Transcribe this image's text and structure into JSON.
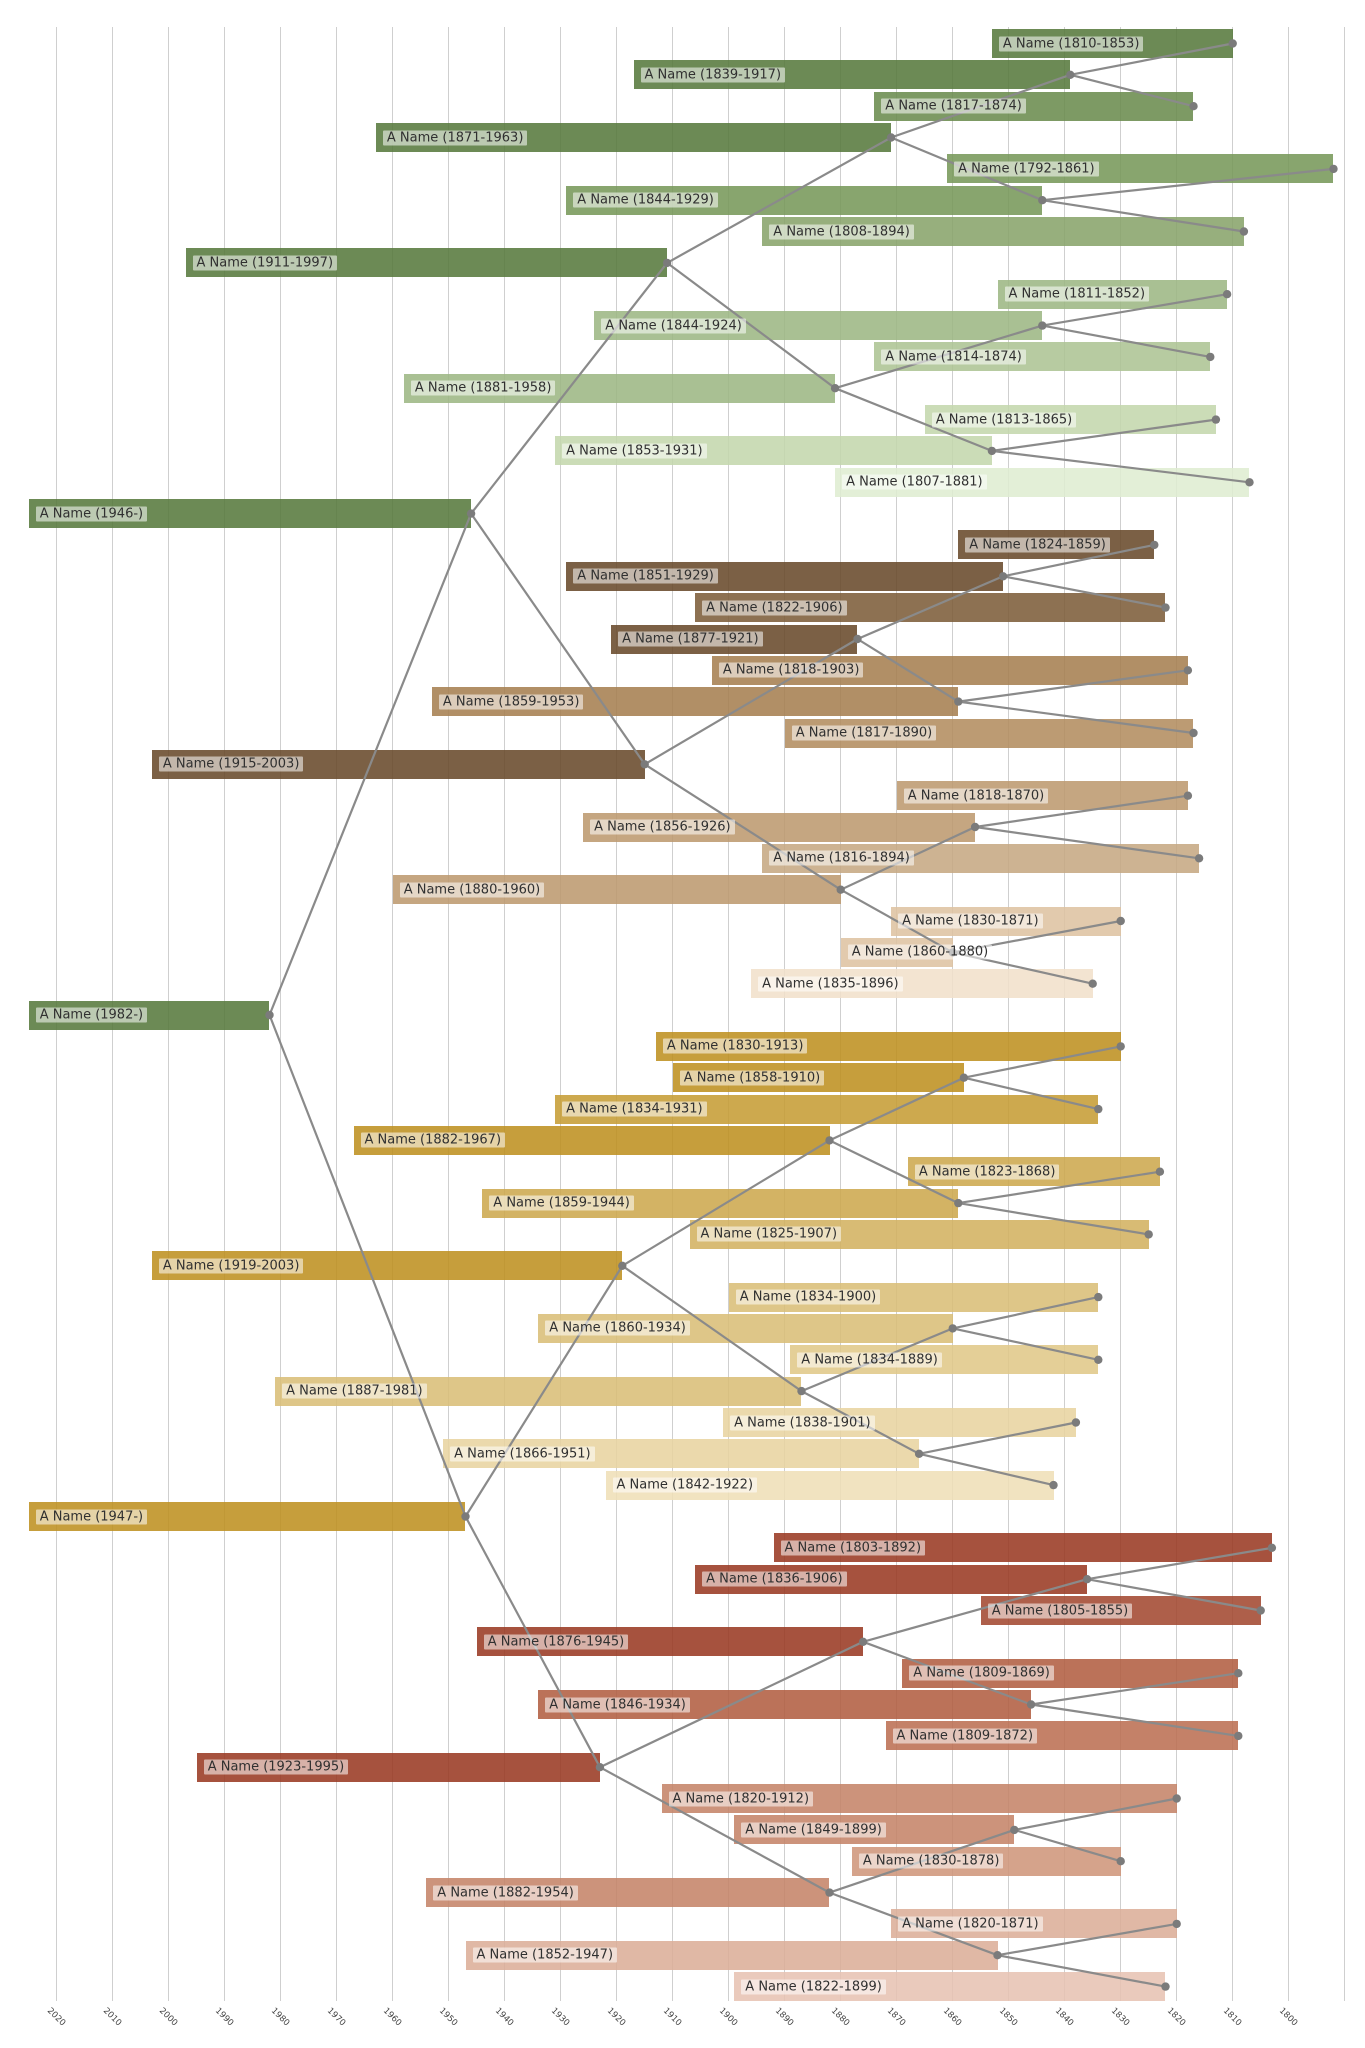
{
  "chart_data": {
    "type": "timeline_tree",
    "title": "",
    "description": "Six-generation ancestor lifespan timeline. Horizontal bars are lifespans on a reversed year axis (recent at left, old at right). Gray lines link each person's birth point to the birth points of their two parents. Bar hue encodes grandparent branch (green / brown / gold / rust); lighter shades encode more-maternal lines.",
    "axis": {
      "unit": "year",
      "direction": "reversed",
      "gridline_step": 10,
      "gridline_years": [
        2020,
        2010,
        2000,
        1990,
        1980,
        1970,
        1960,
        1950,
        1940,
        1930,
        1920,
        1910,
        1900,
        1890,
        1880,
        1870,
        1860,
        1850,
        1840,
        1830,
        1820,
        1810,
        1800,
        1790
      ],
      "tick_labels": [
        "2020",
        "2010",
        "2000",
        "1990",
        "1980",
        "1970",
        "1960",
        "1950",
        "1940",
        "1930",
        "1920",
        "1910",
        "1900",
        "1890",
        "1880",
        "1870",
        "1860",
        "1850",
        "1840",
        "1830",
        "1820",
        "1810",
        "1800"
      ]
    },
    "living_bar_end_year": 2025,
    "colors": {
      "gridline": "#cfcfcf",
      "link_line": "#8a8a8a",
      "birth_dot": "#7b7b7b",
      "label_text": "#303030",
      "label_bg": "rgba(255,255,255,0.55)",
      "palette": {
        "green": [
          "#6c8a54",
          "#7d9a64",
          "#88a46e",
          "#97af7d",
          "#a9c093",
          "#b7cba1",
          "#cbdcb7",
          "#e3efd7"
        ],
        "brown": [
          "#7b6044",
          "#8d7052",
          "#b18e66",
          "#bc9b73",
          "#c5a680",
          "#cdb292",
          "#e2caad",
          "#f3e4d1"
        ],
        "gold": [
          "#c69e3c",
          "#cda94e",
          "#d3b264",
          "#d8bb74",
          "#dec687",
          "#e4cf97",
          "#ebd9ab",
          "#f1e3c0"
        ],
        "rust": [
          "#a6523d",
          "#ae5f4a",
          "#bb7259",
          "#c48068",
          "#cc937b",
          "#d5a38b",
          "#e0b8a4",
          "#eacabc"
        ]
      }
    },
    "persons": [
      {
        "row": 1,
        "label": "A Name (1810-1853)",
        "birth": 1810,
        "death": 1853,
        "branch": "green",
        "shade": 0,
        "parents": null
      },
      {
        "row": 2,
        "label": "A Name (1839-1917)",
        "birth": 1839,
        "death": 1917,
        "branch": "green",
        "shade": 0,
        "parents": [
          1,
          3
        ]
      },
      {
        "row": 3,
        "label": "A Name (1817-1874)",
        "birth": 1817,
        "death": 1874,
        "branch": "green",
        "shade": 1,
        "parents": null
      },
      {
        "row": 4,
        "label": "A Name (1871-1963)",
        "birth": 1871,
        "death": 1963,
        "branch": "green",
        "shade": 0,
        "parents": [
          2,
          6
        ]
      },
      {
        "row": 5,
        "label": "A Name (1792-1861)",
        "birth": 1792,
        "death": 1861,
        "branch": "green",
        "shade": 2,
        "parents": null
      },
      {
        "row": 6,
        "label": "A Name (1844-1929)",
        "birth": 1844,
        "death": 1929,
        "branch": "green",
        "shade": 2,
        "parents": [
          5,
          7
        ]
      },
      {
        "row": 7,
        "label": "A Name (1808-1894)",
        "birth": 1808,
        "death": 1894,
        "branch": "green",
        "shade": 3,
        "parents": null
      },
      {
        "row": 8,
        "label": "A Name (1911-1997)",
        "birth": 1911,
        "death": 1997,
        "branch": "green",
        "shade": 0,
        "parents": [
          4,
          12
        ]
      },
      {
        "row": 9,
        "label": "A Name (1811-1852)",
        "birth": 1811,
        "death": 1852,
        "branch": "green",
        "shade": 4,
        "parents": null
      },
      {
        "row": 10,
        "label": "A Name (1844-1924)",
        "birth": 1844,
        "death": 1924,
        "branch": "green",
        "shade": 4,
        "parents": [
          9,
          11
        ]
      },
      {
        "row": 11,
        "label": "A Name (1814-1874)",
        "birth": 1814,
        "death": 1874,
        "branch": "green",
        "shade": 5,
        "parents": null
      },
      {
        "row": 12,
        "label": "A Name (1881-1958)",
        "birth": 1881,
        "death": 1958,
        "branch": "green",
        "shade": 4,
        "parents": [
          10,
          14
        ]
      },
      {
        "row": 13,
        "label": "A Name (1813-1865)",
        "birth": 1813,
        "death": 1865,
        "branch": "green",
        "shade": 6,
        "parents": null
      },
      {
        "row": 14,
        "label": "A Name (1853-1931)",
        "birth": 1853,
        "death": 1931,
        "branch": "green",
        "shade": 6,
        "parents": [
          13,
          15
        ]
      },
      {
        "row": 15,
        "label": "A Name (1807-1881)",
        "birth": 1807,
        "death": 1881,
        "branch": "green",
        "shade": 7,
        "parents": null
      },
      {
        "row": 16,
        "label": "A Name (1946-)",
        "birth": 1946,
        "death": null,
        "branch": "green",
        "shade": 0,
        "parents": [
          8,
          24
        ]
      },
      {
        "row": 17,
        "label": "A Name (1824-1859)",
        "birth": 1824,
        "death": 1859,
        "branch": "brown",
        "shade": 0,
        "parents": null
      },
      {
        "row": 18,
        "label": "A Name (1851-1929)",
        "birth": 1851,
        "death": 1929,
        "branch": "brown",
        "shade": 0,
        "parents": [
          17,
          19
        ]
      },
      {
        "row": 19,
        "label": "A Name (1822-1906)",
        "birth": 1822,
        "death": 1906,
        "branch": "brown",
        "shade": 1,
        "parents": null
      },
      {
        "row": 20,
        "label": "A Name (1877-1921)",
        "birth": 1877,
        "death": 1921,
        "branch": "brown",
        "shade": 0,
        "parents": [
          18,
          22
        ]
      },
      {
        "row": 21,
        "label": "A Name (1818-1903)",
        "birth": 1818,
        "death": 1903,
        "branch": "brown",
        "shade": 2,
        "parents": null
      },
      {
        "row": 22,
        "label": "A Name (1859-1953)",
        "birth": 1859,
        "death": 1953,
        "branch": "brown",
        "shade": 2,
        "parents": [
          21,
          23
        ]
      },
      {
        "row": 23,
        "label": "A Name (1817-1890)",
        "birth": 1817,
        "death": 1890,
        "branch": "brown",
        "shade": 3,
        "parents": null
      },
      {
        "row": 24,
        "label": "A Name (1915-2003)",
        "birth": 1915,
        "death": 2003,
        "branch": "brown",
        "shade": 0,
        "parents": [
          20,
          28
        ]
      },
      {
        "row": 25,
        "label": "A Name (1818-1870)",
        "birth": 1818,
        "death": 1870,
        "branch": "brown",
        "shade": 4,
        "parents": null
      },
      {
        "row": 26,
        "label": "A Name (1856-1926)",
        "birth": 1856,
        "death": 1926,
        "branch": "brown",
        "shade": 4,
        "parents": [
          25,
          27
        ]
      },
      {
        "row": 27,
        "label": "A Name (1816-1894)",
        "birth": 1816,
        "death": 1894,
        "branch": "brown",
        "shade": 5,
        "parents": null
      },
      {
        "row": 28,
        "label": "A Name (1880-1960)",
        "birth": 1880,
        "death": 1960,
        "branch": "brown",
        "shade": 4,
        "parents": [
          26,
          30
        ]
      },
      {
        "row": 29,
        "label": "A Name (1830-1871)",
        "birth": 1830,
        "death": 1871,
        "branch": "brown",
        "shade": 6,
        "parents": null
      },
      {
        "row": 30,
        "label": "A Name (1860-1880)",
        "birth": 1860,
        "death": 1880,
        "branch": "brown",
        "shade": 6,
        "parents": [
          29,
          31
        ]
      },
      {
        "row": 31,
        "label": "A Name (1835-1896)",
        "birth": 1835,
        "death": 1896,
        "branch": "brown",
        "shade": 7,
        "parents": null
      },
      {
        "row": 32,
        "label": "A Name (1982-)",
        "birth": 1982,
        "death": null,
        "branch": "green",
        "shade": 0,
        "parents": [
          16,
          48
        ]
      },
      {
        "row": 33,
        "label": "A Name (1830-1913)",
        "birth": 1830,
        "death": 1913,
        "branch": "gold",
        "shade": 0,
        "parents": null
      },
      {
        "row": 34,
        "label": "A Name (1858-1910)",
        "birth": 1858,
        "death": 1910,
        "branch": "gold",
        "shade": 0,
        "parents": [
          33,
          35
        ]
      },
      {
        "row": 35,
        "label": "A Name (1834-1931)",
        "birth": 1834,
        "death": 1931,
        "branch": "gold",
        "shade": 1,
        "parents": null
      },
      {
        "row": 36,
        "label": "A Name (1882-1967)",
        "birth": 1882,
        "death": 1967,
        "branch": "gold",
        "shade": 0,
        "parents": [
          34,
          38
        ]
      },
      {
        "row": 37,
        "label": "A Name (1823-1868)",
        "birth": 1823,
        "death": 1868,
        "branch": "gold",
        "shade": 2,
        "parents": null
      },
      {
        "row": 38,
        "label": "A Name (1859-1944)",
        "birth": 1859,
        "death": 1944,
        "branch": "gold",
        "shade": 2,
        "parents": [
          37,
          39
        ]
      },
      {
        "row": 39,
        "label": "A Name (1825-1907)",
        "birth": 1825,
        "death": 1907,
        "branch": "gold",
        "shade": 3,
        "parents": null
      },
      {
        "row": 40,
        "label": "A Name (1919-2003)",
        "birth": 1919,
        "death": 2003,
        "branch": "gold",
        "shade": 0,
        "parents": [
          36,
          44
        ]
      },
      {
        "row": 41,
        "label": "A Name (1834-1900)",
        "birth": 1834,
        "death": 1900,
        "branch": "gold",
        "shade": 4,
        "parents": null
      },
      {
        "row": 42,
        "label": "A Name (1860-1934)",
        "birth": 1860,
        "death": 1934,
        "branch": "gold",
        "shade": 4,
        "parents": [
          41,
          43
        ]
      },
      {
        "row": 43,
        "label": "A Name (1834-1889)",
        "birth": 1834,
        "death": 1889,
        "branch": "gold",
        "shade": 5,
        "parents": null
      },
      {
        "row": 44,
        "label": "A Name (1887-1981)",
        "birth": 1887,
        "death": 1981,
        "branch": "gold",
        "shade": 4,
        "parents": [
          42,
          46
        ]
      },
      {
        "row": 45,
        "label": "A Name (1838-1901)",
        "birth": 1838,
        "death": 1901,
        "branch": "gold",
        "shade": 6,
        "parents": null
      },
      {
        "row": 46,
        "label": "A Name (1866-1951)",
        "birth": 1866,
        "death": 1951,
        "branch": "gold",
        "shade": 6,
        "parents": [
          45,
          47
        ]
      },
      {
        "row": 47,
        "label": "A Name (1842-1922)",
        "birth": 1842,
        "death": 1922,
        "branch": "gold",
        "shade": 7,
        "parents": null
      },
      {
        "row": 48,
        "label": "A Name (1947-)",
        "birth": 1947,
        "death": null,
        "branch": "gold",
        "shade": 0,
        "parents": [
          40,
          56
        ]
      },
      {
        "row": 49,
        "label": "A Name (1803-1892)",
        "birth": 1803,
        "death": 1892,
        "branch": "rust",
        "shade": 0,
        "parents": null
      },
      {
        "row": 50,
        "label": "A Name (1836-1906)",
        "birth": 1836,
        "death": 1906,
        "branch": "rust",
        "shade": 0,
        "parents": [
          49,
          51
        ]
      },
      {
        "row": 51,
        "label": "A Name (1805-1855)",
        "birth": 1805,
        "death": 1855,
        "branch": "rust",
        "shade": 1,
        "parents": null
      },
      {
        "row": 52,
        "label": "A Name (1876-1945)",
        "birth": 1876,
        "death": 1945,
        "branch": "rust",
        "shade": 0,
        "parents": [
          50,
          54
        ]
      },
      {
        "row": 53,
        "label": "A Name (1809-1869)",
        "birth": 1809,
        "death": 1869,
        "branch": "rust",
        "shade": 2,
        "parents": null
      },
      {
        "row": 54,
        "label": "A Name (1846-1934)",
        "birth": 1846,
        "death": 1934,
        "branch": "rust",
        "shade": 2,
        "parents": [
          53,
          55
        ]
      },
      {
        "row": 55,
        "label": "A Name (1809-1872)",
        "birth": 1809,
        "death": 1872,
        "branch": "rust",
        "shade": 3,
        "parents": null
      },
      {
        "row": 56,
        "label": "A Name (1923-1995)",
        "birth": 1923,
        "death": 1995,
        "branch": "rust",
        "shade": 0,
        "parents": [
          52,
          60
        ]
      },
      {
        "row": 57,
        "label": "A Name (1820-1912)",
        "birth": 1820,
        "death": 1912,
        "branch": "rust",
        "shade": 4,
        "parents": null
      },
      {
        "row": 58,
        "label": "A Name (1849-1899)",
        "birth": 1849,
        "death": 1899,
        "branch": "rust",
        "shade": 4,
        "parents": [
          57,
          59
        ]
      },
      {
        "row": 59,
        "label": "A Name (1830-1878)",
        "birth": 1830,
        "death": 1878,
        "branch": "rust",
        "shade": 5,
        "parents": null
      },
      {
        "row": 60,
        "label": "A Name (1882-1954)",
        "birth": 1882,
        "death": 1954,
        "branch": "rust",
        "shade": 4,
        "parents": [
          58,
          62
        ]
      },
      {
        "row": 61,
        "label": "A Name (1820-1871)",
        "birth": 1820,
        "death": 1871,
        "branch": "rust",
        "shade": 6,
        "parents": null
      },
      {
        "row": 62,
        "label": "A Name (1852-1947)",
        "birth": 1852,
        "death": 1947,
        "branch": "rust",
        "shade": 6,
        "parents": [
          61,
          63
        ]
      },
      {
        "row": 63,
        "label": "A Name (1822-1899)",
        "birth": 1822,
        "death": 1899,
        "branch": "rust",
        "shade": 7,
        "parents": null
      }
    ]
  }
}
